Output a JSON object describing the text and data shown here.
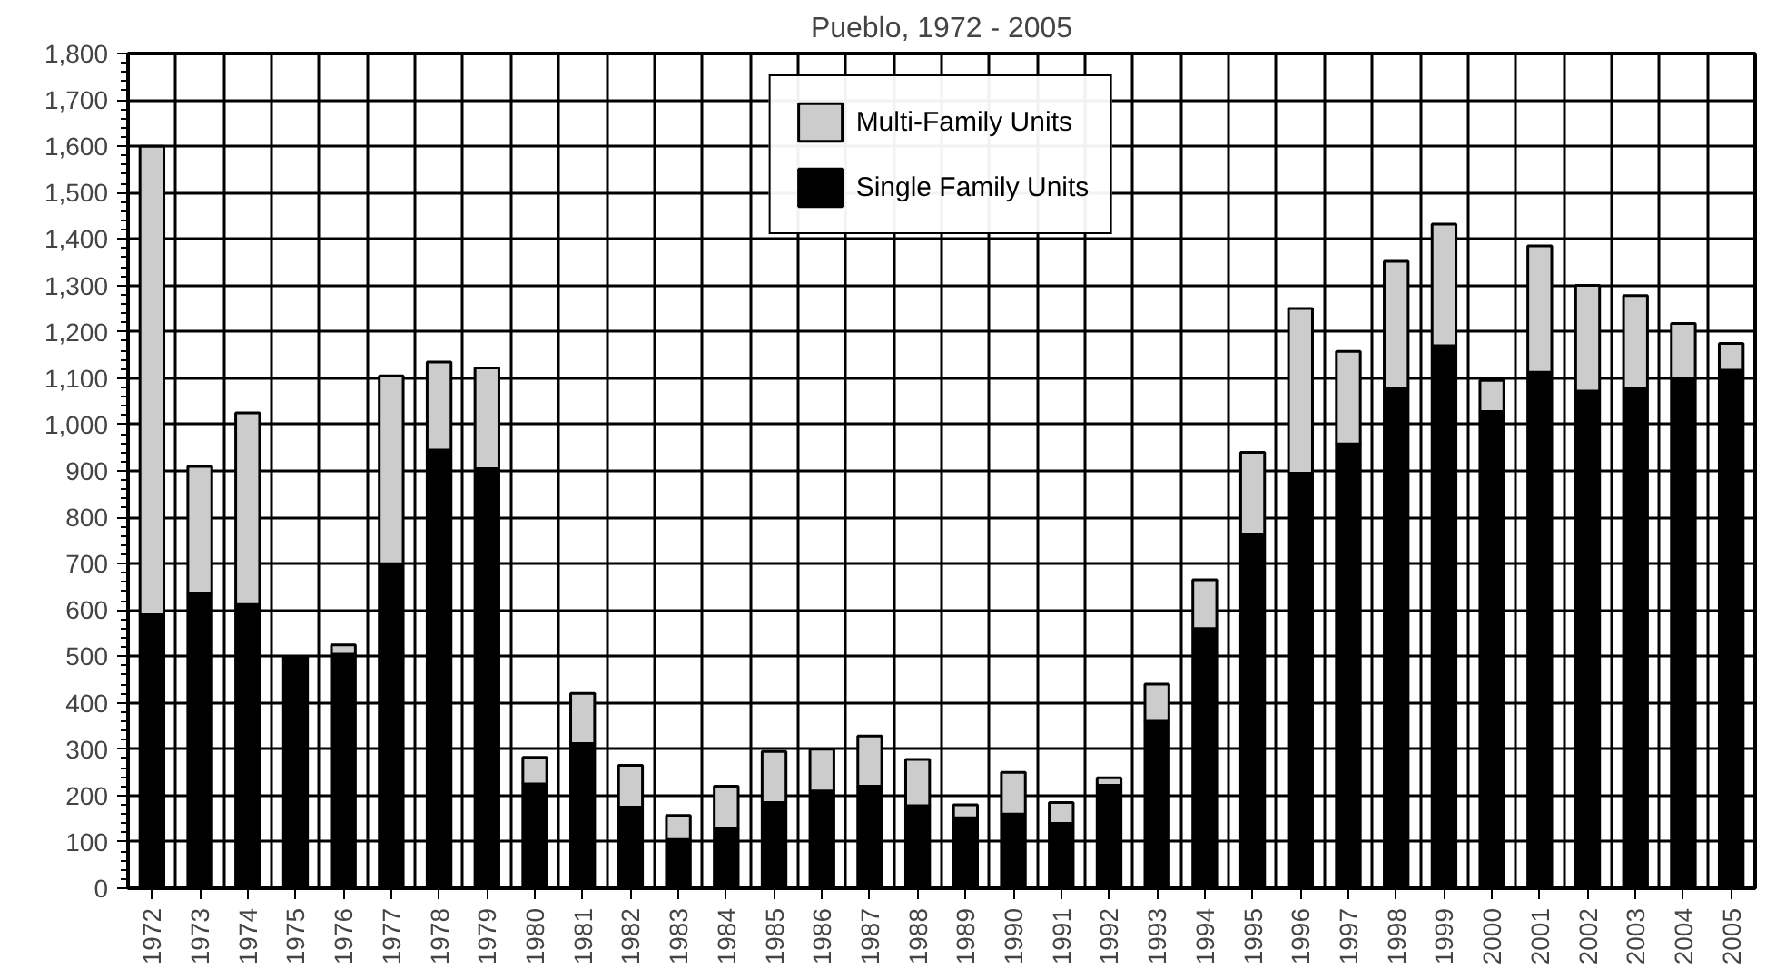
{
  "chart_data": {
    "type": "bar",
    "title": "Pueblo, 1972 - 2005",
    "stacked": true,
    "legend": "top",
    "grid": true,
    "categories": [
      "1972",
      "1973",
      "1974",
      "1975",
      "1976",
      "1977",
      "1978",
      "1979",
      "1980",
      "1981",
      "1982",
      "1983",
      "1984",
      "1985",
      "1986",
      "1987",
      "1988",
      "1989",
      "1990",
      "1991",
      "1992",
      "1993",
      "1994",
      "1995",
      "1996",
      "1997",
      "1998",
      "1999",
      "2000",
      "2001",
      "2002",
      "2003",
      "2004",
      "2005"
    ],
    "series": [
      {
        "name": "Single Family Units",
        "color": "#000000",
        "values": [
          590,
          635,
          612,
          500,
          505,
          700,
          945,
          905,
          225,
          312,
          175,
          105,
          128,
          185,
          210,
          220,
          178,
          152,
          160,
          140,
          222,
          360,
          560,
          762,
          895,
          958,
          1078,
          1170,
          1028,
          1113,
          1072,
          1078,
          1100,
          1117
        ]
      },
      {
        "name": "Multi-Family Units",
        "color": "#cccccc",
        "values": [
          1010,
          275,
          413,
          null,
          20,
          405,
          190,
          217,
          57,
          108,
          90,
          52,
          92,
          110,
          90,
          108,
          100,
          28,
          90,
          45,
          16,
          80,
          105,
          178,
          355,
          200,
          274,
          262,
          67,
          272,
          228,
          200,
          118,
          58
        ]
      }
    ],
    "ylim": [
      0,
      1800
    ],
    "yticks": [
      {
        "value": 0,
        "label": "0"
      },
      {
        "value": 100,
        "label": "100"
      },
      {
        "value": 200,
        "label": "200"
      },
      {
        "value": 300,
        "label": "300"
      },
      {
        "value": 400,
        "label": "400"
      },
      {
        "value": 500,
        "label": "500"
      },
      {
        "value": 600,
        "label": "600"
      },
      {
        "value": 700,
        "label": "700"
      },
      {
        "value": 800,
        "label": "800"
      },
      {
        "value": 900,
        "label": "900"
      },
      {
        "value": 1000,
        "label": "1,000"
      },
      {
        "value": 1100,
        "label": "1,100"
      },
      {
        "value": 1200,
        "label": "1,200"
      },
      {
        "value": 1300,
        "label": "1,300"
      },
      {
        "value": 1400,
        "label": "1,400"
      },
      {
        "value": 1500,
        "label": "1,500"
      },
      {
        "value": 1600,
        "label": "1,600"
      },
      {
        "value": 1700,
        "label": "1,700"
      },
      {
        "value": 1800,
        "label": "1,800"
      }
    ]
  }
}
